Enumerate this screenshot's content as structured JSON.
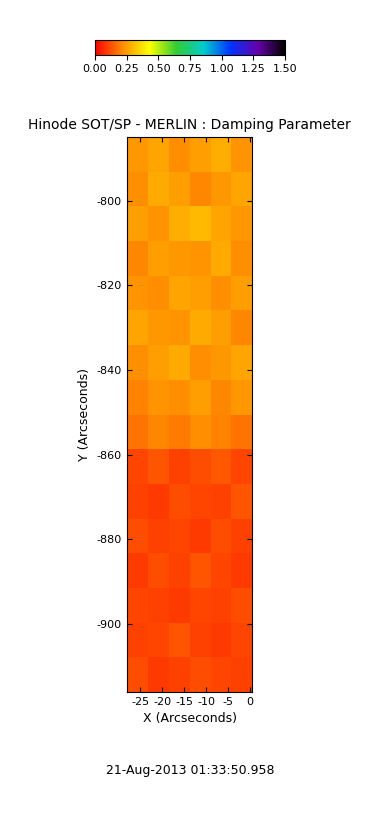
{
  "chart_data": {
    "type": "heatmap",
    "title": "Hinode SOT/SP - MERLIN : Damping Parameter",
    "x_label": "X (Arcseconds)",
    "y_label": "Y (Arcseconds)",
    "annotations": [
      "21-Aug-2013 01:33:50.958"
    ],
    "xlim": [
      -28,
      0.5
    ],
    "ylim": [
      -916,
      -785
    ],
    "xticks": [
      -25,
      -20,
      -15,
      -10,
      -5,
      0
    ],
    "yticks": [
      -900,
      -880,
      -860,
      -840,
      -820,
      -800
    ],
    "grid": false,
    "cells": [
      [
        0.24,
        0.26,
        0.22,
        0.25,
        0.28,
        0.23
      ],
      [
        0.22,
        0.27,
        0.25,
        0.21,
        0.24,
        0.26
      ],
      [
        0.25,
        0.23,
        0.28,
        0.3,
        0.26,
        0.24
      ],
      [
        0.21,
        0.25,
        0.24,
        0.23,
        0.27,
        0.22
      ],
      [
        0.23,
        0.22,
        0.26,
        0.25,
        0.22,
        0.25
      ],
      [
        0.26,
        0.24,
        0.23,
        0.27,
        0.25,
        0.21
      ],
      [
        0.22,
        0.25,
        0.27,
        0.22,
        0.24,
        0.26
      ],
      [
        0.2,
        0.23,
        0.22,
        0.25,
        0.21,
        0.24
      ],
      [
        0.18,
        0.21,
        0.19,
        0.22,
        0.2,
        0.18
      ],
      [
        0.11,
        0.13,
        0.1,
        0.12,
        0.14,
        0.11
      ],
      [
        0.1,
        0.09,
        0.12,
        0.11,
        0.1,
        0.13
      ],
      [
        0.12,
        0.1,
        0.11,
        0.09,
        0.12,
        0.1
      ],
      [
        0.09,
        0.12,
        0.1,
        0.13,
        0.11,
        0.09
      ],
      [
        0.11,
        0.1,
        0.09,
        0.11,
        0.1,
        0.12
      ],
      [
        0.1,
        0.11,
        0.13,
        0.1,
        0.09,
        0.11
      ],
      [
        0.12,
        0.09,
        0.1,
        0.12,
        0.11,
        0.1
      ]
    ],
    "colorbar": {
      "range": [
        0,
        1.5
      ],
      "ticks": [
        {
          "value": 0,
          "label": "0.00"
        },
        {
          "value": 0.25,
          "label": "0.25"
        },
        {
          "value": 0.5,
          "label": "0.50"
        },
        {
          "value": 0.75,
          "label": "0.75"
        },
        {
          "value": 1.0,
          "label": "1.00"
        },
        {
          "value": 1.25,
          "label": "1.25"
        },
        {
          "value": 1.5,
          "label": "1.50"
        }
      ]
    }
  }
}
